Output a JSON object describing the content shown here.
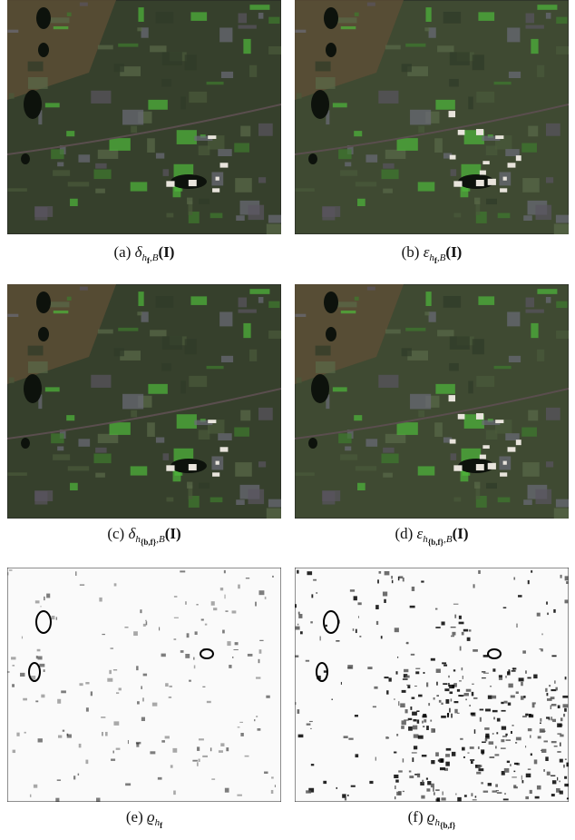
{
  "figure": {
    "panels": [
      {
        "label": "(a)",
        "symbol": "δ",
        "sub": "h",
        "subsub": "f",
        "subtail": ",B",
        "arg": "(I)"
      },
      {
        "label": "(b)",
        "symbol": "ε",
        "sub": "h",
        "subsub": "f",
        "subtail": ",B",
        "arg": "(I)"
      },
      {
        "label": "(c)",
        "symbol": "δ",
        "sub": "h",
        "subsub": "{b,f}",
        "subtail": ",B",
        "arg": "(I)"
      },
      {
        "label": "(d)",
        "symbol": "ε",
        "sub": "h",
        "subsub": "{b,f}",
        "subtail": ",B",
        "arg": "(I)"
      },
      {
        "label": "(e)",
        "symbol": "ϱ",
        "sub": "h",
        "subsub": "f"
      },
      {
        "label": "(f)",
        "symbol": "ϱ",
        "sub": "h",
        "subsub": "{b,f}"
      }
    ]
  }
}
